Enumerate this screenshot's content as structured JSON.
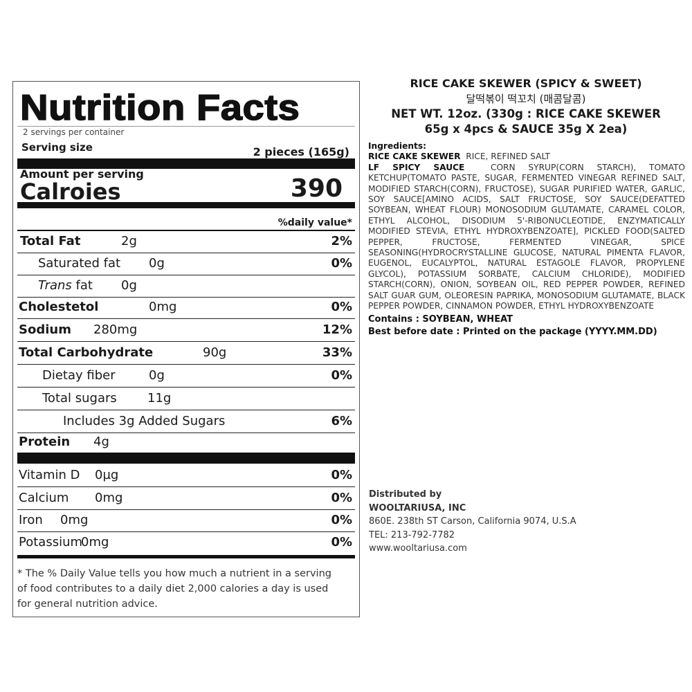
{
  "nutrition": {
    "title": "Nutrition Facts",
    "servings": "2 servings per container",
    "serving_size_label": "Serving size",
    "serving_size_value": "2 pieces (165g)",
    "amount_per_serving": "Amount per serving",
    "calories_label": "Calroies",
    "calories_value": "390",
    "daily_value_header": "%daily value*",
    "rows": [
      {
        "name": "Total Fat",
        "amount": "2g",
        "pct": "2%"
      },
      {
        "name": "Saturated fat",
        "amount": "0g",
        "pct": "0%"
      },
      {
        "name": "Trans fat",
        "amount": "0g",
        "pct": ""
      },
      {
        "name": "Cholestetol",
        "amount": "0mg",
        "pct": "0%"
      },
      {
        "name": "Sodium",
        "amount": "280mg",
        "pct": "12%"
      },
      {
        "name": "Total Carbohydrate",
        "amount": "90g",
        "pct": "33%"
      },
      {
        "name": "Dietay fiber",
        "amount": "0g",
        "pct": "0%"
      },
      {
        "name": "Total sugars",
        "amount": "11g",
        "pct": ""
      },
      {
        "name": "Includes 3g Added Sugars",
        "amount": "",
        "pct": "6%"
      },
      {
        "name": "Protein",
        "amount": "4g",
        "pct": ""
      }
    ],
    "vitamins": [
      {
        "name": "Vitamin D",
        "amount": "0µg",
        "pct": "0%"
      },
      {
        "name": "Calcium",
        "amount": "0mg",
        "pct": "0%"
      },
      {
        "name": "Iron",
        "amount": "0mg",
        "pct": "0%"
      },
      {
        "name": "Potassium",
        "amount": "0mg",
        "pct": "0%"
      }
    ],
    "footnote": "* The % Daily Value tells you how much a nutrient in a serving of food contributes to a daily diet 2,000 calories a day is used for general nutrition advice."
  },
  "product": {
    "name": "RICE CAKE SKEWER (SPICY & SWEET)",
    "name_korean": "달떡볶이 떡꼬치 (매콤달콤)",
    "net_wt_1": "NET WT. 12oz. (330g : RICE CAKE SKEWER",
    "net_wt_2": "65g x 4pcs & SAUCE 35g X 2ea)",
    "ingredients_label": "Ingredients:",
    "ingredient_1_head": "RICE CAKE SKEWER",
    "ingredient_1_text": "RICE, REFINED SALT",
    "ingredient_2_head": "LF SPICY SAUCE",
    "ingredient_2_text": "CORN SYRUP(CORN STARCH), TOMATO KETCHUP(TOMATO PASTE, SUGAR, FERMENTED VINEGAR REFINED SALT, MODIFIED STARCH(CORN), FRUCTOSE), SUGAR PURIFIED WATER, GARLIC, SOY SAUCE[AMINO ACIDS, SALT FRUCTOSE, SOY SAUCE(DEFATTED SOYBEAN, WHEAT FLOUR) MONOSODIUM GLUTAMATE, CARAMEL COLOR, ETHYL ALCOHOL, DISODIUM 5'-RIBONUCLEOTIDE, ENZYMATICALLY MODIFIED STEVIA, ETHYL HYDROXYBENZOATE], PICKLED FOOD(SALTED PEPPER, FRUCTOSE, FERMENTED VINEGAR, SPICE SEASONING(HYDROCRYSTALLINE GLUCOSE, NATURAL PIMENTA FLAVOR, EUGENOL, EUCALYPTOL, NATURAL ESTAGOLE FLAVOR, PROPYLENE GLYCOL), POTASSIUM SORBATE, CALCIUM CHLORIDE), MODIFIED STARCH(CORN), ONION, SOYBEAN OIL, RED PEPPER POWDER, REFINED SALT GUAR GUM, OLEORESIN PAPRIKA, MONOSODIUM GLUTAMATE, BLACK PEPPER POWDER, CINNAMON POWDER, ETHYL HYDROXYBENZOATE",
    "contains": "Contains : SOYBEAN, WHEAT",
    "best_before": "Best before date : Printed on the package (YYYY.MM.DD)"
  },
  "distributor": {
    "label": "Distributed by",
    "name": "WOOLTARIUSA, INC",
    "address": "860E. 238th ST Carson, California 9074, U.S.A",
    "tel": "TEL: 213-792-7782",
    "web": "www.wooltariusa.com"
  }
}
